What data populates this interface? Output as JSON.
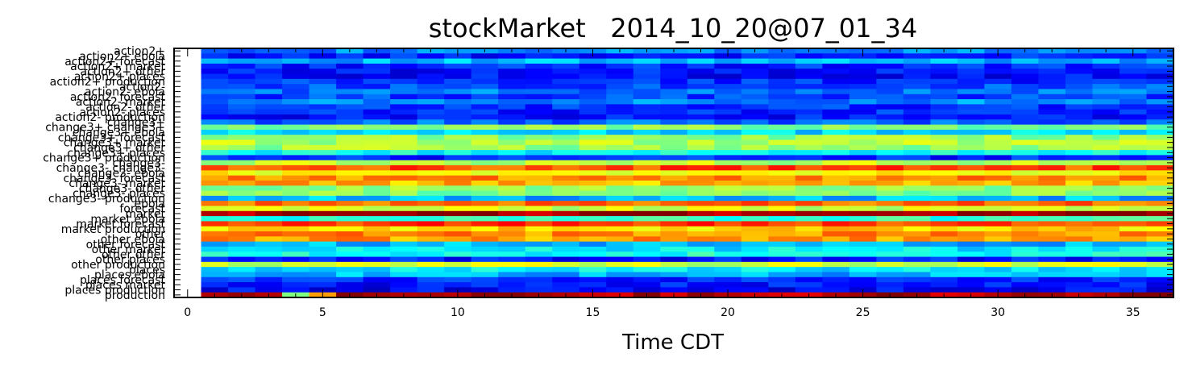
{
  "chart_data": {
    "type": "heatmap",
    "title": "stockMarket   2014_10_20@07_01_34",
    "xlabel": "Time CDT",
    "ylabel": "",
    "xlim": [
      -0.5,
      36.5
    ],
    "x_ticks": [
      0,
      5,
      10,
      15,
      20,
      25,
      30,
      35
    ],
    "n_columns": 36,
    "colormap": "jet",
    "color_scale": [
      0,
      1
    ],
    "rows": [
      {
        "label": "action2+",
        "base": 0.25
      },
      {
        "label": "action2+   ebola",
        "base": 0.15
      },
      {
        "label": "action2+   forecast",
        "base": 0.3
      },
      {
        "label": "action2+   market",
        "base": 0.16
      },
      {
        "label": "action2+   other",
        "base": 0.14
      },
      {
        "label": "action2+   places",
        "base": 0.13
      },
      {
        "label": "action2+   production",
        "base": 0.17
      },
      {
        "label": "action2-",
        "base": 0.2
      },
      {
        "label": "action2-   ebola",
        "base": 0.24
      },
      {
        "label": "action2-   forecast",
        "base": 0.19
      },
      {
        "label": "action2-   market",
        "base": 0.26
      },
      {
        "label": "action2-   other",
        "base": 0.17
      },
      {
        "label": "action2-   places",
        "base": 0.16
      },
      {
        "label": "action2-   production",
        "base": 0.14
      },
      {
        "label": "change3+",
        "base": 0.22
      },
      {
        "label": "change3+   change3+",
        "base": 0.5
      },
      {
        "label": "change3+   ebola",
        "base": 0.34
      },
      {
        "label": "change3+   forecast",
        "base": 0.52
      },
      {
        "label": "change3+   market",
        "base": 0.55
      },
      {
        "label": "change3+   other",
        "base": 0.53
      },
      {
        "label": "change3+   places",
        "base": 0.38
      },
      {
        "label": "change3+   production",
        "base": 0.16
      },
      {
        "label": "change3-",
        "base": 0.56
      },
      {
        "label": "change3-   change3-",
        "base": 0.8
      },
      {
        "label": "change3-   ebola",
        "base": 0.62
      },
      {
        "label": "change3-   forecast",
        "base": 0.74
      },
      {
        "label": "change3-   market",
        "base": 0.7
      },
      {
        "label": "change3-   other",
        "base": 0.52
      },
      {
        "label": "change3-   places",
        "base": 0.5
      },
      {
        "label": "change3-   production",
        "base": 0.3
      },
      {
        "label": "ebola",
        "base": 0.78
      },
      {
        "label": "forecast",
        "base": 0.58
      },
      {
        "label": "market",
        "base": 0.97
      },
      {
        "label": "market   ebola",
        "base": 0.42
      },
      {
        "label": "market   forecast",
        "base": 0.82
      },
      {
        "label": "market   production",
        "base": 0.66
      },
      {
        "label": "other",
        "base": 0.74
      },
      {
        "label": "other   ebola",
        "base": 0.72
      },
      {
        "label": "other   forecast",
        "base": 0.3
      },
      {
        "label": "other   market",
        "base": 0.36
      },
      {
        "label": "other   other",
        "base": 0.4
      },
      {
        "label": "other   places",
        "base": 0.14
      },
      {
        "label": "other   production",
        "base": 0.58
      },
      {
        "label": "places",
        "base": 0.36
      },
      {
        "label": "places   ebola",
        "base": 0.3
      },
      {
        "label": "places   forecast",
        "base": 0.16
      },
      {
        "label": "places   market",
        "base": 0.14
      },
      {
        "label": "places   production",
        "base": 0.12
      },
      {
        "label": "production",
        "base": 0.96
      }
    ]
  }
}
